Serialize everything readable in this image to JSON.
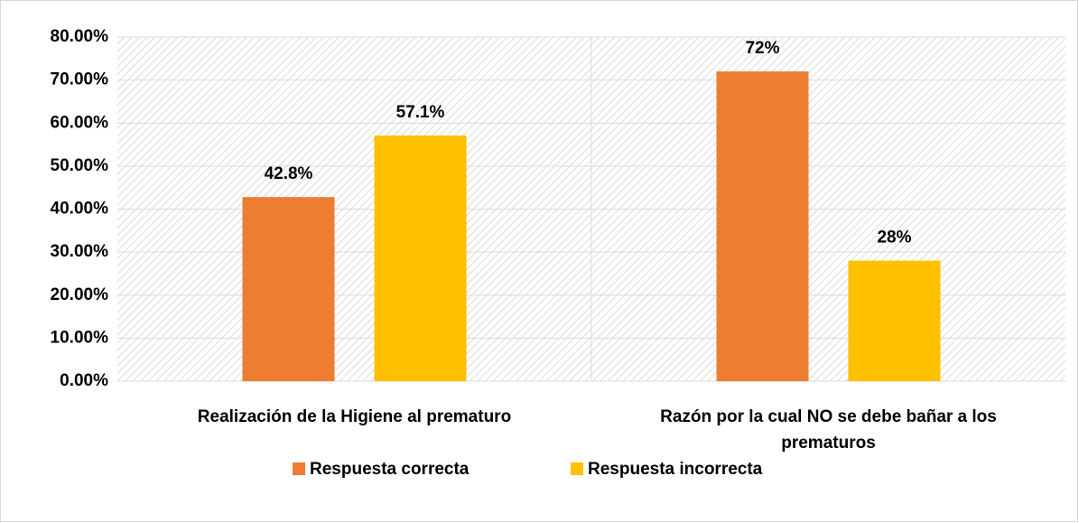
{
  "chart_data": {
    "type": "bar",
    "categories": [
      "Realización de la Higiene al prematuro",
      "Razón por la cual NO se debe bañar a los prematuros"
    ],
    "series": [
      {
        "name": "Respuesta correcta",
        "color": "#ed7d31",
        "values": [
          42.8,
          72
        ],
        "value_labels": [
          "42.8%",
          "72%"
        ]
      },
      {
        "name": "Respuesta incorrecta",
        "color": "#ffc000",
        "values": [
          57.1,
          28
        ],
        "value_labels": [
          "57.1%",
          "28%"
        ]
      }
    ],
    "ylim": [
      0,
      80
    ],
    "yticks": [
      {
        "value": 0,
        "label": "0.00%"
      },
      {
        "value": 10,
        "label": "10.00%"
      },
      {
        "value": 20,
        "label": "20.00%"
      },
      {
        "value": 30,
        "label": "30.00%"
      },
      {
        "value": 40,
        "label": "40.00%"
      },
      {
        "value": 50,
        "label": "50.00%"
      },
      {
        "value": 60,
        "label": "60.00%"
      },
      {
        "value": 70,
        "label": "70.00%"
      },
      {
        "value": 80,
        "label": "80.00%"
      }
    ],
    "grid": true,
    "legend": "bottom"
  }
}
